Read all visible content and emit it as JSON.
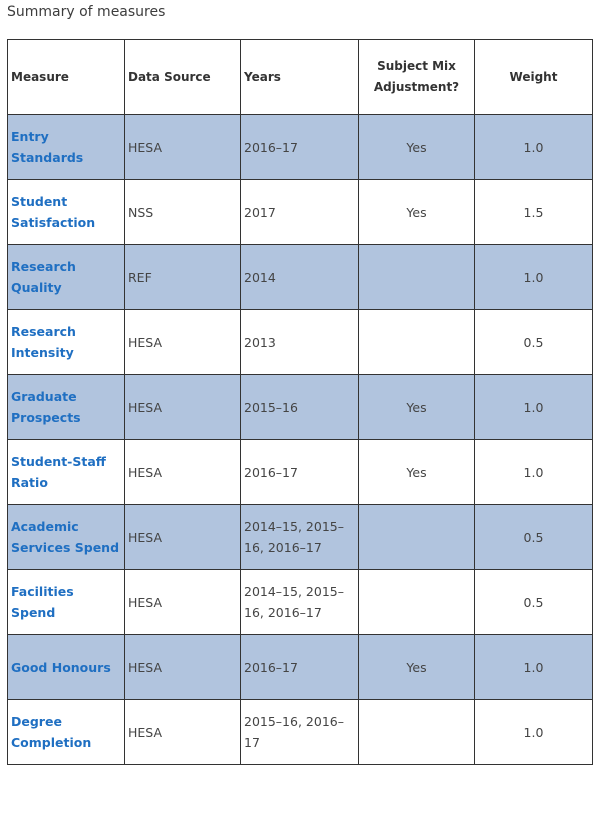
{
  "caption": "Summary of measures",
  "headers": {
    "measure": "Measure",
    "source": "Data Source",
    "years": "Years",
    "adjust": "Subject Mix Adjustment?",
    "weight": "Weight"
  },
  "rows": [
    {
      "measure": "Entry Standards",
      "source": "HESA",
      "years": "2016–17",
      "adjust": "Yes",
      "weight": "1.0"
    },
    {
      "measure": "Student Satisfaction",
      "source": "NSS",
      "years": "2017",
      "adjust": "Yes",
      "weight": "1.5"
    },
    {
      "measure": "Research Quality",
      "source": "REF",
      "years": "2014",
      "adjust": "",
      "weight": "1.0"
    },
    {
      "measure": "Research Intensity",
      "source": "HESA",
      "years": "2013",
      "adjust": "",
      "weight": "0.5"
    },
    {
      "measure": "Graduate Prospects",
      "source": "HESA",
      "years": "2015–16",
      "adjust": "Yes",
      "weight": "1.0"
    },
    {
      "measure": "Student-Staff Ratio",
      "source": "HESA",
      "years": "2016–17",
      "adjust": "Yes",
      "weight": "1.0"
    },
    {
      "measure": "Academic Services Spend",
      "source": "HESA",
      "years": "2014–15, 2015–16, 2016–17",
      "adjust": "",
      "weight": "0.5"
    },
    {
      "measure": "Facilities Spend",
      "source": "HESA",
      "years": "2014–15, 2015–16, 2016–17",
      "adjust": "",
      "weight": "0.5"
    },
    {
      "measure": "Good Honours",
      "source": "HESA",
      "years": "2016–17",
      "adjust": "Yes",
      "weight": "1.0"
    },
    {
      "measure": "Degree Completion",
      "source": "HESA",
      "years": "2015–16, 2016–17",
      "adjust": "",
      "weight": "1.0"
    }
  ]
}
